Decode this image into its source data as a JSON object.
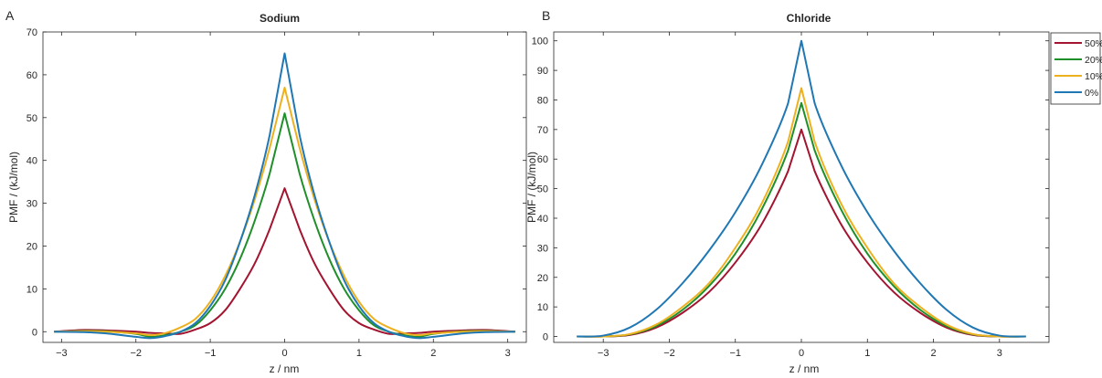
{
  "chart_data": [
    {
      "panel": "A",
      "type": "line",
      "title": "Sodium",
      "xlabel": "z / nm",
      "ylabel": "PMF / (kJ/mol)",
      "xlim": [
        -3.25,
        3.25
      ],
      "ylim": [
        -2.5,
        70
      ],
      "xticks": [
        -3,
        -2,
        -1,
        0,
        1,
        2,
        3
      ],
      "yticks": [
        0,
        10,
        20,
        30,
        40,
        50,
        60,
        70
      ],
      "grid": false,
      "series": [
        {
          "color": "#a2142f",
          "x": [
            -3.1,
            -2.7,
            -2.4,
            -2.0,
            -1.8,
            -1.6,
            -1.4,
            -1.2,
            -1.0,
            -0.8,
            -0.6,
            -0.4,
            -0.2,
            0,
            0.2,
            0.4,
            0.6,
            0.8,
            1.0,
            1.2,
            1.4,
            1.6,
            1.8,
            2.0,
            2.4,
            2.7,
            3.1
          ],
          "y": [
            0,
            0.4,
            0.3,
            0,
            -0.3,
            -0.4,
            -0.5,
            0.5,
            2,
            5,
            10,
            16,
            24,
            33.5,
            24,
            16,
            10,
            5,
            2,
            0.5,
            -0.5,
            -0.4,
            -0.3,
            0,
            0.3,
            0.4,
            0
          ]
        },
        {
          "color": "#1f8f2a",
          "x": [
            -3.1,
            -2.7,
            -2.4,
            -2.0,
            -1.8,
            -1.6,
            -1.4,
            -1.2,
            -1.0,
            -0.8,
            -0.6,
            -0.4,
            -0.2,
            0,
            0.2,
            0.4,
            0.6,
            0.8,
            1.0,
            1.2,
            1.4,
            1.6,
            1.8,
            2.0,
            2.4,
            2.7,
            3.1
          ],
          "y": [
            0,
            0.2,
            0.1,
            -0.5,
            -1.2,
            -0.8,
            0,
            1.5,
            5,
            10,
            17,
            26,
            37,
            51,
            37,
            26,
            17,
            10,
            5,
            1.5,
            0,
            -0.8,
            -1.2,
            -0.5,
            0.1,
            0.2,
            0
          ]
        },
        {
          "color": "#edb120",
          "x": [
            -3.1,
            -2.7,
            -2.4,
            -2.0,
            -1.8,
            -1.6,
            -1.4,
            -1.2,
            -1.0,
            -0.8,
            -0.6,
            -0.4,
            -0.2,
            0,
            0.2,
            0.4,
            0.6,
            0.8,
            1.0,
            1.2,
            1.4,
            1.6,
            1.8,
            2.0,
            2.4,
            2.7,
            3.1
          ],
          "y": [
            0,
            0.1,
            0,
            -0.4,
            -0.8,
            -0.3,
            1,
            3,
            7,
            13,
            21,
            31,
            43,
            57,
            43,
            31,
            21,
            13,
            7,
            3,
            1,
            -0.3,
            -0.8,
            -0.4,
            0,
            0.1,
            0
          ]
        },
        {
          "color": "#1f77b4",
          "x": [
            -3.1,
            -2.7,
            -2.4,
            -2.0,
            -1.8,
            -1.6,
            -1.4,
            -1.2,
            -1.0,
            -0.8,
            -0.6,
            -0.4,
            -0.2,
            0,
            0.2,
            0.4,
            0.6,
            0.8,
            1.0,
            1.2,
            1.4,
            1.6,
            1.8,
            2.0,
            2.4,
            2.7,
            3.1
          ],
          "y": [
            0,
            -0.1,
            -0.4,
            -1.2,
            -1.5,
            -1,
            0,
            2,
            6,
            12,
            21,
            32,
            46,
            65,
            46,
            32,
            21,
            12,
            6,
            2,
            0,
            -1,
            -1.5,
            -1.2,
            -0.4,
            -0.1,
            0
          ]
        }
      ]
    },
    {
      "panel": "B",
      "type": "line",
      "title": "Chloride",
      "xlabel": "z / nm",
      "ylabel": "PMF / (kJ/mol)",
      "xlim": [
        -3.75,
        3.75
      ],
      "ylim": [
        -2,
        103
      ],
      "xticks": [
        -3,
        -2,
        -1,
        0,
        1,
        2,
        3
      ],
      "yticks": [
        0,
        10,
        20,
        30,
        40,
        50,
        60,
        70,
        80,
        90,
        100
      ],
      "grid": false,
      "legend_position": "outside-top-right",
      "series": [
        {
          "name": "50%",
          "color": "#a2142f",
          "x": [
            -3.4,
            -3.0,
            -2.6,
            -2.2,
            -1.8,
            -1.4,
            -1.0,
            -0.6,
            -0.2,
            0,
            0.2,
            0.6,
            1.0,
            1.4,
            1.8,
            2.2,
            2.6,
            3.0,
            3.4
          ],
          "y": [
            0,
            0,
            0.5,
            3,
            8,
            15,
            25,
            38,
            56,
            70,
            56,
            38,
            25,
            15,
            8,
            3,
            0.5,
            0,
            0
          ]
        },
        {
          "name": "20%",
          "color": "#1f8f2a",
          "x": [
            -3.4,
            -3.0,
            -2.6,
            -2.2,
            -1.8,
            -1.4,
            -1.0,
            -0.6,
            -0.2,
            0,
            0.2,
            0.6,
            1.0,
            1.4,
            1.8,
            2.2,
            2.6,
            3.0,
            3.4
          ],
          "y": [
            0,
            0,
            0.7,
            3.5,
            9,
            17,
            28,
            43,
            63,
            79,
            63,
            43,
            28,
            17,
            9,
            3.5,
            0.7,
            0,
            0
          ]
        },
        {
          "name": "10%",
          "color": "#edb120",
          "x": [
            -3.4,
            -3.0,
            -2.6,
            -2.2,
            -1.8,
            -1.4,
            -1.0,
            -0.6,
            -0.2,
            0,
            0.2,
            0.6,
            1.0,
            1.4,
            1.8,
            2.2,
            2.6,
            3.0,
            3.4
          ],
          "y": [
            0,
            0,
            0.8,
            4,
            10,
            18,
            30,
            45,
            66,
            84,
            66,
            45,
            30,
            18,
            10,
            4,
            0.8,
            0,
            0
          ]
        },
        {
          "name": "0%",
          "color": "#1f77b4",
          "x": [
            -3.4,
            -3.0,
            -2.6,
            -2.2,
            -1.8,
            -1.4,
            -1.0,
            -0.6,
            -0.2,
            0,
            0.2,
            0.6,
            1.0,
            1.4,
            1.8,
            2.2,
            2.6,
            3.0,
            3.4
          ],
          "y": [
            0,
            0.3,
            3,
            9,
            18,
            29,
            42,
            58,
            79,
            100,
            79,
            58,
            42,
            29,
            18,
            9,
            3,
            0.3,
            0
          ]
        }
      ]
    }
  ]
}
